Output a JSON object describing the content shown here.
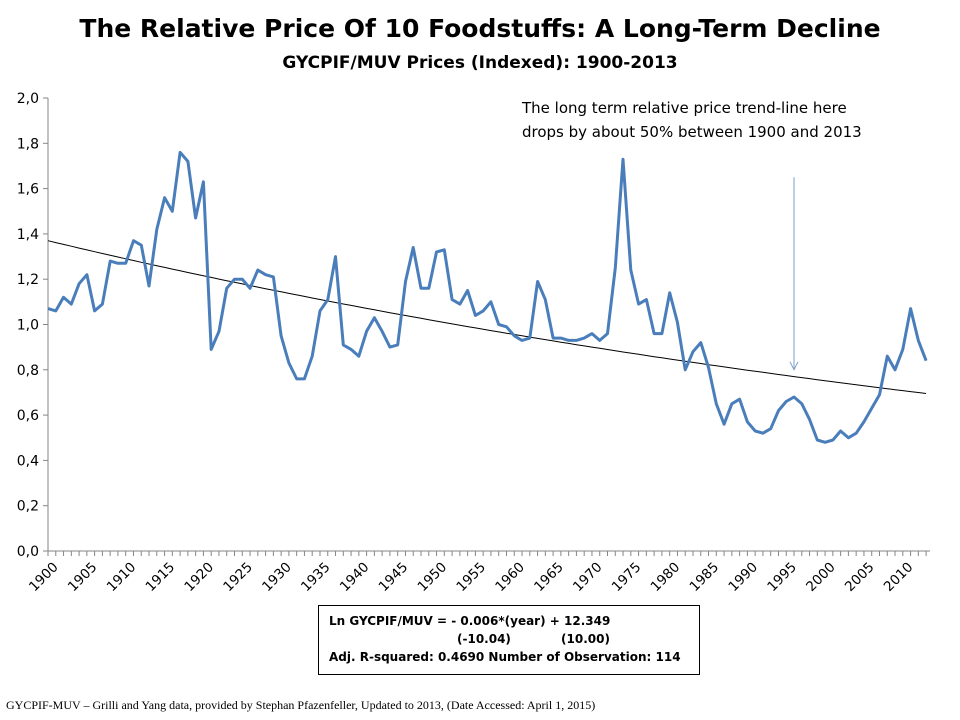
{
  "chart_data": {
    "type": "line",
    "title": "The Relative Price Of 10 Foodstuffs: A Long-Term Decline",
    "subtitle": "GYCPIF/MUV Prices (Indexed): 1900-2013",
    "xlabel": "",
    "ylabel": "",
    "xlim": [
      1900,
      2013
    ],
    "ylim": [
      0,
      2.0
    ],
    "y_ticks": [
      "0,0",
      "0,2",
      "0,4",
      "0,6",
      "0,8",
      "1,0",
      "1,2",
      "1,4",
      "1,6",
      "1,8",
      "2,0"
    ],
    "x_ticks": [
      "1900",
      "1905",
      "1910",
      "1915",
      "1920",
      "1925",
      "1930",
      "1935",
      "1940",
      "1945",
      "1950",
      "1955",
      "1960",
      "1965",
      "1970",
      "1975",
      "1980",
      "1985",
      "1990",
      "1995",
      "2000",
      "2005",
      "2010"
    ],
    "grid": false,
    "legend": "none",
    "series": [
      {
        "color": "#4a7ebb",
        "x": [
          1900,
          1901,
          1902,
          1903,
          1904,
          1905,
          1906,
          1907,
          1908,
          1909,
          1910,
          1911,
          1912,
          1913,
          1914,
          1915,
          1916,
          1917,
          1918,
          1919,
          1920,
          1921,
          1922,
          1923,
          1924,
          1925,
          1926,
          1927,
          1928,
          1929,
          1930,
          1931,
          1932,
          1933,
          1934,
          1935,
          1936,
          1937,
          1938,
          1939,
          1940,
          1941,
          1942,
          1943,
          1944,
          1945,
          1946,
          1947,
          1948,
          1949,
          1950,
          1951,
          1952,
          1953,
          1954,
          1955,
          1956,
          1957,
          1958,
          1959,
          1960,
          1961,
          1962,
          1963,
          1964,
          1965,
          1966,
          1967,
          1968,
          1969,
          1970,
          1971,
          1972,
          1973,
          1974,
          1975,
          1976,
          1977,
          1978,
          1979,
          1980,
          1981,
          1982,
          1983,
          1984,
          1985,
          1986,
          1987,
          1988,
          1989,
          1990,
          1991,
          1992,
          1993,
          1994,
          1995,
          1996,
          1997,
          1998,
          1999,
          2000,
          2001,
          2002,
          2003,
          2004,
          2005,
          2006,
          2007,
          2008,
          2009,
          2010,
          2011,
          2012,
          2013
        ],
        "y": [
          1.07,
          1.06,
          1.12,
          1.09,
          1.18,
          1.22,
          1.06,
          1.09,
          1.28,
          1.27,
          1.27,
          1.37,
          1.35,
          1.17,
          1.42,
          1.56,
          1.5,
          1.76,
          1.72,
          1.47,
          1.63,
          0.89,
          0.97,
          1.16,
          1.2,
          1.2,
          1.16,
          1.24,
          1.22,
          1.21,
          0.95,
          0.83,
          0.76,
          0.76,
          0.86,
          1.06,
          1.11,
          1.3,
          0.91,
          0.89,
          0.86,
          0.97,
          1.03,
          0.97,
          0.9,
          0.91,
          1.19,
          1.34,
          1.16,
          1.16,
          1.32,
          1.33,
          1.11,
          1.09,
          1.15,
          1.04,
          1.06,
          1.1,
          1.0,
          0.99,
          0.95,
          0.93,
          0.94,
          1.19,
          1.11,
          0.94,
          0.94,
          0.93,
          0.93,
          0.94,
          0.96,
          0.93,
          0.96,
          1.25,
          1.73,
          1.24,
          1.09,
          1.11,
          0.96,
          0.96,
          1.14,
          1.01,
          0.8,
          0.88,
          0.92,
          0.81,
          0.65,
          0.56,
          0.65,
          0.67,
          0.57,
          0.53,
          0.52,
          0.54,
          0.62,
          0.66,
          0.68,
          0.65,
          0.58,
          0.49,
          0.48,
          0.49,
          0.53,
          0.5,
          0.52,
          0.57,
          0.63,
          0.69,
          0.86,
          0.8,
          0.89,
          1.07,
          0.93,
          0.84
        ]
      },
      {
        "color": "#000000",
        "x": [
          1900,
          2013
        ],
        "y": [
          1.37,
          0.67
        ],
        "curve_ln_intercept": 12.349,
        "curve_ln_slope": -0.006,
        "curve_start_y": 1.37
      }
    ],
    "annotations": [
      {
        "text_line1": "The long term relative price trend-line here",
        "text_line2": "drops by  about 50% between 1900 and 2013",
        "arrow_x": 1996,
        "arrow_from_y": 1.65,
        "arrow_to_y": 0.8,
        "arrow_color": "#7f9fc6"
      }
    ],
    "regression_box": {
      "line1": "Ln GYCPIF/MUV = - 0.006*(year) + 12.349",
      "line2": "(-10.04)            (10.00)",
      "line3": "Adj. R-squared: 0.4690     Number of Observation: 114"
    }
  },
  "source_note": "GYCPIF-MUV – Grilli  and Yang data, provided by Stephan Pfazenfeller, Updated to 2013,  (Date Accessed:  April 1, 2015)"
}
